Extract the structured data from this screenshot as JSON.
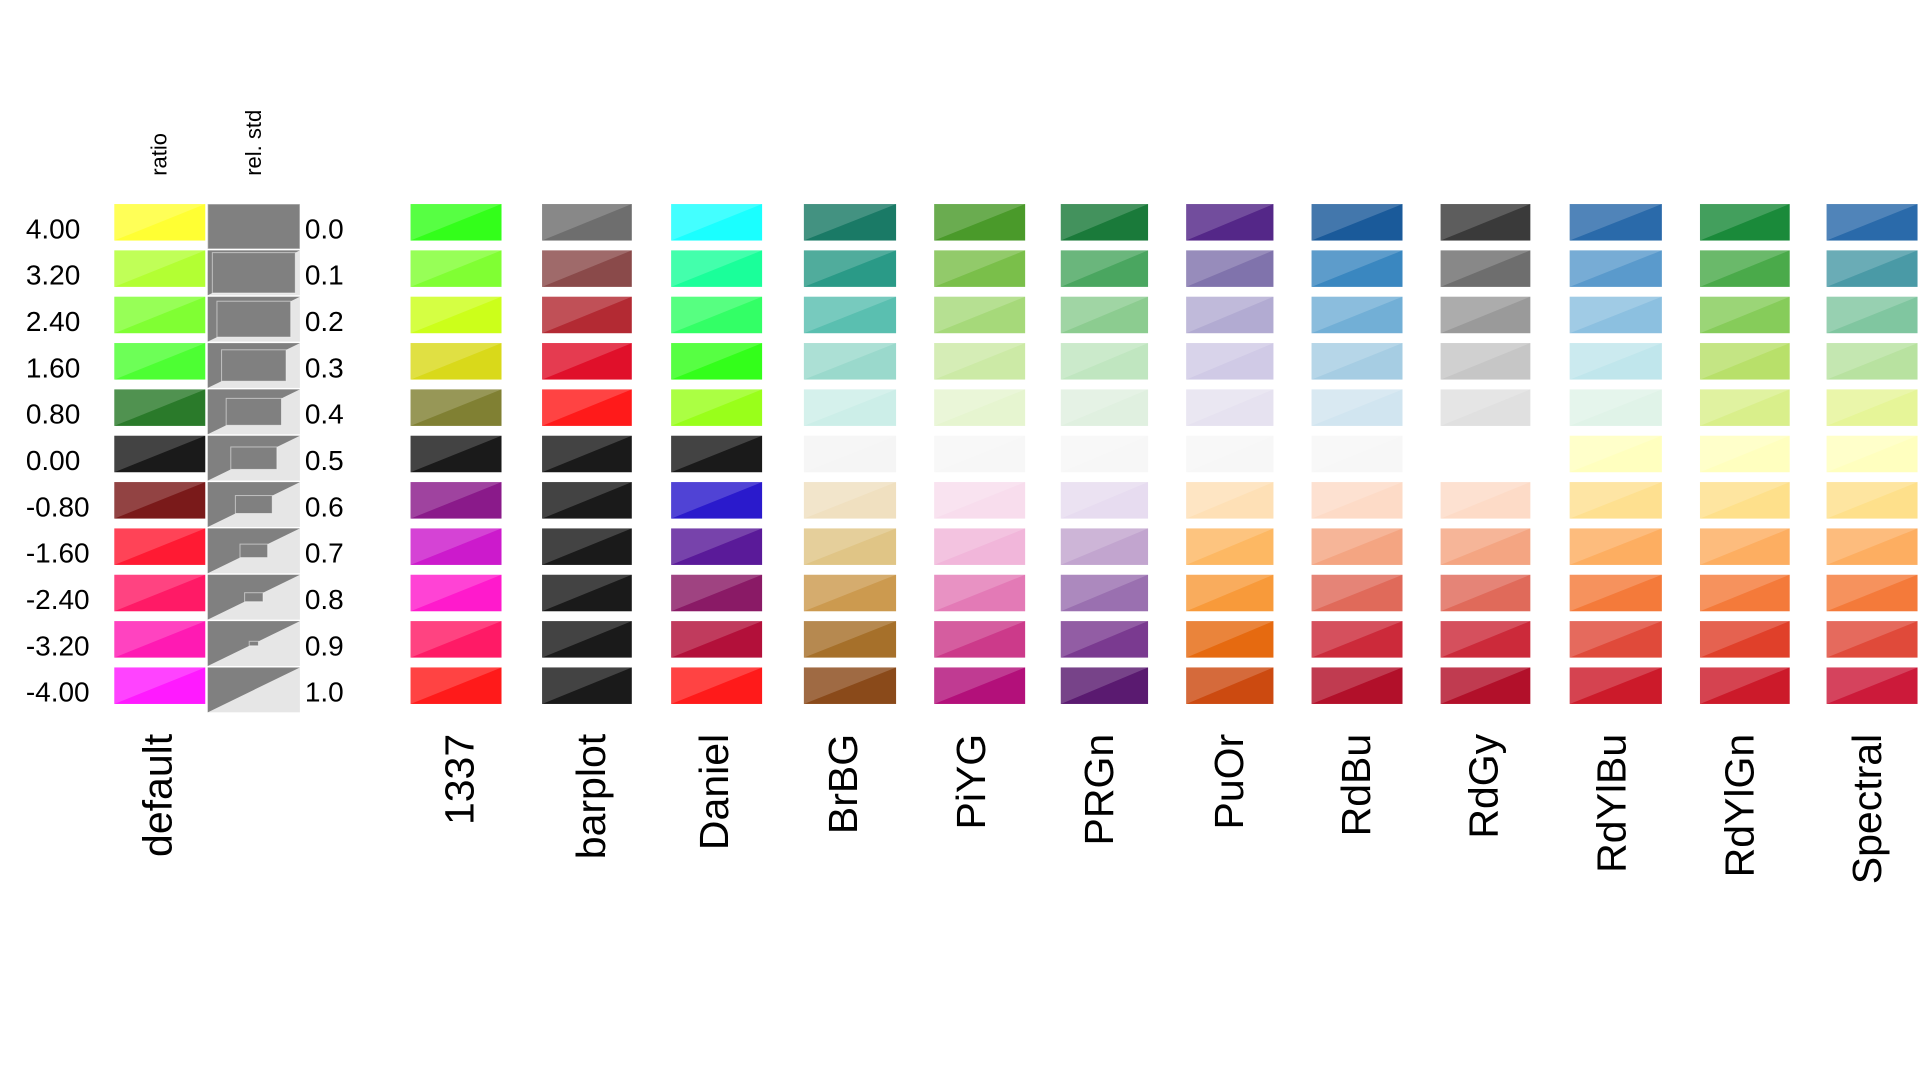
{
  "chart_data": {
    "type": "table",
    "header_labels": {
      "ratio": "ratio",
      "rel_std": "rel. std"
    },
    "ratio_values": [
      "4.00",
      "3.20",
      "2.40",
      "1.60",
      "0.80",
      "0.00",
      "-0.80",
      "-1.60",
      "-2.40",
      "-3.20",
      "-4.00"
    ],
    "rel_std_values": [
      "0.0",
      "0.1",
      "0.2",
      "0.3",
      "0.4",
      "0.5",
      "0.6",
      "0.7",
      "0.8",
      "0.9",
      "1.0"
    ],
    "rel_std_swatch": {
      "fill": "#808080",
      "background": "#e6e6e6"
    },
    "palettes": [
      {
        "name": "default",
        "colors": [
          "#ffff33",
          "#b3ff33",
          "#80ff33",
          "#4dff33",
          "#2a7a2a",
          "#1a1a1a",
          "#7a1a1a",
          "#ff1a33",
          "#ff1a66",
          "#ff1ab3",
          "#ff1aff"
        ]
      },
      {
        "name": "1337",
        "colors": [
          "#33ff1a",
          "#80ff33",
          "#ccff1a",
          "#d9d91a",
          "#808033",
          "#1a1a1a",
          "#8a1a8a",
          "#cc1acc",
          "#ff1acc",
          "#ff1a66",
          "#ff1a1a"
        ]
      },
      {
        "name": "barplot",
        "colors": [
          "#6e6e6e",
          "#8a4a4a",
          "#b32a33",
          "#e0102a",
          "#ff1a1a",
          "#1a1a1a",
          "#1a1a1a",
          "#1a1a1a",
          "#1a1a1a",
          "#1a1a1a",
          "#1a1a1a"
        ]
      },
      {
        "name": "Daniel",
        "colors": [
          "#1affff",
          "#1aff9a",
          "#33ff66",
          "#33ff1a",
          "#99ff1a",
          "#1a1a1a",
          "#2a1acc",
          "#5a1a99",
          "#8a1a66",
          "#b3103a",
          "#ff1a1a"
        ]
      },
      {
        "name": "BrBG",
        "colors": [
          "#1a7a66",
          "#2a9a87",
          "#5abfb0",
          "#9ad9cc",
          "#cceee8",
          "#f5f5f5",
          "#f0e0c0",
          "#e0c586",
          "#cc9a4f",
          "#a6702a",
          "#8a4a1a"
        ]
      },
      {
        "name": "PiYG",
        "colors": [
          "#4a9a2a",
          "#7abf4a",
          "#a6d97a",
          "#cceaa6",
          "#e6f5d0",
          "#f7f7f7",
          "#f8dded",
          "#f1b6da",
          "#e37ab6",
          "#cc3a8a",
          "#b3107a"
        ]
      },
      {
        "name": "PRGn",
        "colors": [
          "#1a7a3a",
          "#4aa660",
          "#8ccc90",
          "#c0e6c0",
          "#e0f0e0",
          "#f7f7f7",
          "#e7dcf0",
          "#c2a5cf",
          "#9a70b0",
          "#7a3a90",
          "#5a1a70"
        ]
      },
      {
        "name": "PuOr",
        "colors": [
          "#542788",
          "#8073ac",
          "#b2abd2",
          "#d0cae6",
          "#e6e2f0",
          "#f7f7f7",
          "#fee0b6",
          "#fdb863",
          "#f89a3a",
          "#e66a10",
          "#cc4a10"
        ]
      },
      {
        "name": "RdBu",
        "colors": [
          "#1a5a9a",
          "#3a87c0",
          "#72afd6",
          "#a6cde3",
          "#d1e5f0",
          "#f7f7f7",
          "#fddbc7",
          "#f4a582",
          "#e06a5a",
          "#cc2a3a",
          "#b2102a"
        ]
      },
      {
        "name": "RdGy",
        "colors": [
          "#3a3a3a",
          "#6e6e6e",
          "#9a9a9a",
          "#c6c6c6",
          "#e0e0e0",
          "#ffffff",
          "#fddbc7",
          "#f4a582",
          "#e06a5a",
          "#cc2a3a",
          "#b2102a"
        ]
      },
      {
        "name": "RdYlBu",
        "colors": [
          "#2a6aaa",
          "#5a9acc",
          "#8cc0e0",
          "#c0e6ec",
          "#e0f3e8",
          "#ffffbf",
          "#fee090",
          "#fdae61",
          "#f47a3a",
          "#e04a3a",
          "#cc1a2a"
        ]
      },
      {
        "name": "RdYlGn",
        "colors": [
          "#1a8a3a",
          "#4aaa4a",
          "#86cc5a",
          "#b8e06a",
          "#d9ef8b",
          "#ffffbf",
          "#fee08b",
          "#fdae61",
          "#f47a3a",
          "#e0402a",
          "#cc1a2a"
        ]
      },
      {
        "name": "Spectral",
        "colors": [
          "#2a6aaa",
          "#4a9aa6",
          "#80c6a0",
          "#b8e2a0",
          "#e6f598",
          "#ffffbf",
          "#fee08b",
          "#fdae61",
          "#f47a3a",
          "#e04a3a",
          "#cc1a3a"
        ]
      }
    ]
  }
}
